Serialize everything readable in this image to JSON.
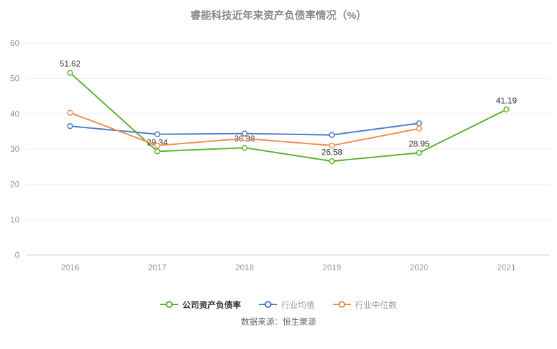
{
  "source": "数据来源：恒生聚源",
  "chart_data": {
    "type": "line",
    "title": "睿能科技近年来资产负债率情况（%）",
    "xlabel": "",
    "ylabel": "",
    "categories": [
      "2016",
      "2017",
      "2018",
      "2019",
      "2020",
      "2021"
    ],
    "series": [
      {
        "name": "公司资产负债率",
        "color": "#5bb431",
        "values": [
          51.62,
          29.34,
          30.38,
          26.58,
          28.95,
          41.19
        ],
        "show_labels": true
      },
      {
        "name": "行业均值",
        "color": "#4d7bce",
        "values": [
          36.5,
          34.2,
          34.4,
          34.0,
          37.3,
          null
        ],
        "show_labels": false
      },
      {
        "name": "行业中位数",
        "color": "#ef8d50",
        "values": [
          40.3,
          31.0,
          33.0,
          31.0,
          35.8,
          null
        ],
        "show_labels": false
      }
    ],
    "ylim": [
      0,
      60
    ],
    "yticks": [
      0,
      10,
      20,
      30,
      40,
      50,
      60
    ],
    "grid": true,
    "legend_position": "bottom",
    "label_color": "#333333",
    "axis_text_color": "#999999",
    "grid_color": "#eeeeee",
    "axis_line_color": "#cccccc"
  }
}
